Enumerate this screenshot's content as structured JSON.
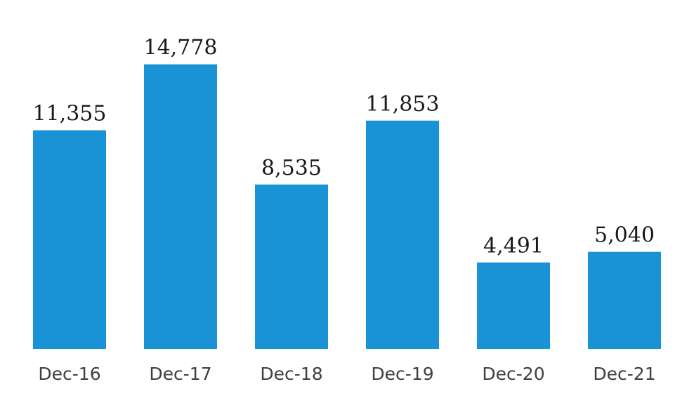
{
  "chart_data": {
    "type": "bar",
    "categories": [
      "Dec-16",
      "Dec-17",
      "Dec-18",
      "Dec-19",
      "Dec-20",
      "Dec-21"
    ],
    "values": [
      11355,
      14778,
      8535,
      11853,
      4491,
      5040
    ],
    "value_labels": [
      "11,355",
      "14,778",
      "8,535",
      "11,853",
      "4,491",
      "5,040"
    ],
    "title": "",
    "xlabel": "",
    "ylabel": "",
    "ylim": [
      0,
      16000
    ],
    "grid": false,
    "legend": "none",
    "bar_color": "#1a93d6"
  }
}
